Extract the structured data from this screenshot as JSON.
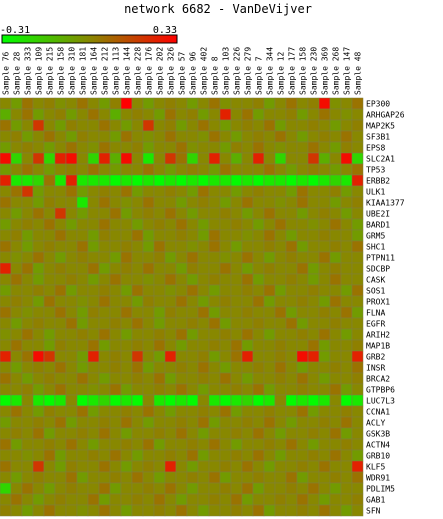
{
  "chart_data": {
    "type": "heatmap",
    "title": "network 6682 - VanDeVijver",
    "color_scale": {
      "min_label": "-0.31",
      "max_label": "0.33",
      "min": -0.31,
      "max": 0.33,
      "low_color": "#00ff00",
      "mid_color": "#888800",
      "high_color": "#ff0000"
    },
    "columns": [
      "Sample 76",
      "Sample 28",
      "Sample 333",
      "Sample 109",
      "Sample 215",
      "Sample 158",
      "Sample 310",
      "Sample 181",
      "Sample 164",
      "Sample 212",
      "Sample 113",
      "Sample 144",
      "Sample 228",
      "Sample 176",
      "Sample 202",
      "Sample 326",
      "Sample 57",
      "Sample 96",
      "Sample 402",
      "Sample 8",
      "Sample 103",
      "Sample 226",
      "Sample 279",
      "Sample 7",
      "Sample 344",
      "Sample 12",
      "Sample 177",
      "Sample 158",
      "Sample 230",
      "Sample 369",
      "Sample 268",
      "Sample 147",
      "Sample 48"
    ],
    "rows": [
      "EP300",
      "ARHGAP26",
      "MAP2K5",
      "SF3B1",
      "EPS8",
      "SLC2A1",
      "TP53",
      "ERBB2",
      "ULK1",
      "KIAA1377",
      "UBE2I",
      "BARD1",
      "GRM5",
      "SHC1",
      "PTPN11",
      "SDCBP",
      "CASK",
      "SOS1",
      "PROX1",
      "FLNA",
      "EGFR",
      "ARIH2",
      "MAP1B",
      "GRB2",
      "INSR",
      "BRCA2",
      "GTPBP6",
      "LUC7L3",
      "CCNA1",
      "ACLY",
      "GSK3B",
      "ACTN4",
      "GRB10",
      "KLF5",
      "WDR91",
      "PDLIM5",
      "GAB1",
      "SFN"
    ],
    "values": [
      [
        0.0,
        -0.05,
        0.05,
        0.0,
        0.02,
        -0.02,
        0.0,
        0.05,
        0.0,
        -0.05,
        0.02,
        0.33,
        0.0,
        -0.05,
        0.0,
        0.02,
        0.0,
        -0.05,
        0.0,
        0.05,
        -0.02,
        0.0,
        0.0,
        0.02,
        -0.05,
        0.0,
        0.05,
        0.0,
        0.02,
        0.3,
        -0.02,
        0.0,
        0.05
      ],
      [
        -0.1,
        0.0,
        0.05,
        -0.05,
        0.0,
        0.02,
        -0.05,
        0.0,
        0.05,
        0.0,
        -0.1,
        0.0,
        0.02,
        0.0,
        -0.05,
        0.05,
        0.0,
        0.02,
        -0.05,
        0.0,
        0.25,
        0.0,
        0.05,
        -0.05,
        0.0,
        0.0,
        0.02,
        -0.05,
        0.0,
        0.05,
        0.0,
        -0.02,
        0.0
      ],
      [
        0.05,
        -0.05,
        0.0,
        0.2,
        0.0,
        -0.05,
        0.02,
        0.0,
        0.0,
        0.05,
        0.0,
        -0.05,
        0.0,
        0.2,
        0.0,
        0.02,
        -0.05,
        0.0,
        0.05,
        0.0,
        -0.05,
        0.0,
        0.02,
        0.0,
        0.05,
        -0.05,
        0.0,
        0.0,
        0.02,
        0.0,
        -0.05,
        0.0,
        0.02
      ],
      [
        0.0,
        0.02,
        -0.05,
        0.0,
        0.05,
        0.0,
        -0.05,
        0.02,
        0.0,
        0.0,
        -0.05,
        0.05,
        0.0,
        -0.02,
        0.0,
        0.05,
        0.0,
        0.0,
        -0.02,
        0.05,
        0.0,
        -0.05,
        0.0,
        0.02,
        0.0,
        0.05,
        0.0,
        -0.05,
        0.0,
        0.02,
        0.0,
        0.05,
        0.0
      ],
      [
        -0.05,
        0.0,
        0.02,
        0.0,
        -0.05,
        0.0,
        0.05,
        0.0,
        -0.02,
        0.05,
        0.0,
        0.0,
        0.02,
        -0.05,
        0.0,
        0.0,
        0.05,
        -0.02,
        0.0,
        0.0,
        -0.05,
        0.02,
        0.0,
        0.05,
        0.0,
        -0.02,
        0.0,
        0.0,
        0.05,
        0.0,
        -0.05,
        0.02,
        0.0
      ],
      [
        0.3,
        -0.2,
        0.0,
        0.2,
        -0.2,
        0.25,
        0.3,
        0.0,
        -0.2,
        0.25,
        -0.1,
        0.3,
        0.0,
        -0.25,
        0.0,
        0.2,
        0.05,
        -0.2,
        0.0,
        0.25,
        0.0,
        -0.1,
        0.0,
        0.25,
        0.0,
        -0.2,
        0.0,
        0.0,
        0.2,
        -0.1,
        0.0,
        0.3,
        -0.2
      ],
      [
        -0.05,
        0.0,
        0.05,
        0.0,
        -0.05,
        0.0,
        0.02,
        0.0,
        0.05,
        0.0,
        -0.05,
        0.0,
        0.0,
        0.05,
        0.0,
        -0.05,
        0.0,
        0.02,
        0.0,
        -0.05,
        0.05,
        0.0,
        0.0,
        0.0,
        0.05,
        0.0,
        -0.05,
        0.0,
        0.02,
        0.0,
        -0.05,
        0.0,
        0.05
      ],
      [
        0.25,
        -0.25,
        -0.25,
        -0.2,
        0.05,
        -0.25,
        0.25,
        -0.25,
        -0.25,
        -0.25,
        -0.3,
        -0.25,
        -0.3,
        -0.25,
        -0.3,
        -0.25,
        -0.3,
        -0.25,
        -0.3,
        -0.25,
        -0.25,
        -0.3,
        -0.25,
        -0.3,
        -0.25,
        -0.25,
        -0.3,
        -0.25,
        -0.3,
        -0.25,
        -0.2,
        -0.25,
        0.25
      ],
      [
        0.0,
        0.05,
        0.2,
        -0.05,
        0.0,
        0.0,
        0.05,
        -0.05,
        0.0,
        0.02,
        0.0,
        0.05,
        -0.05,
        0.0,
        0.0,
        0.02,
        0.0,
        -0.05,
        0.05,
        0.0,
        0.0,
        -0.05,
        0.0,
        0.02,
        0.0,
        0.0,
        -0.05,
        0.05,
        0.0,
        0.0,
        0.02,
        -0.05,
        0.0
      ],
      [
        0.05,
        0.0,
        0.0,
        -0.05,
        0.02,
        0.0,
        0.0,
        -0.25,
        0.0,
        0.05,
        0.0,
        -0.02,
        0.0,
        0.05,
        0.0,
        0.0,
        -0.05,
        0.0,
        0.02,
        0.0,
        -0.05,
        0.0,
        0.05,
        0.0,
        0.0,
        -0.02,
        0.0,
        0.05,
        0.0,
        0.0,
        -0.05,
        0.0,
        0.02
      ],
      [
        0.0,
        -0.05,
        0.0,
        0.05,
        0.0,
        0.2,
        0.0,
        -0.05,
        0.0,
        0.0,
        0.05,
        -0.05,
        0.0,
        0.02,
        0.0,
        0.05,
        0.0,
        -0.05,
        0.0,
        0.0,
        0.02,
        0.0,
        -0.05,
        0.0,
        0.05,
        0.0,
        0.0,
        -0.05,
        0.0,
        0.02,
        0.0,
        -0.05,
        0.0
      ],
      [
        -0.05,
        0.0,
        0.02,
        0.0,
        0.05,
        0.0,
        -0.05,
        0.0,
        0.0,
        0.05,
        0.0,
        0.0,
        -0.05,
        0.0,
        0.02,
        0.0,
        0.05,
        0.0,
        -0.05,
        0.0,
        0.0,
        0.02,
        0.0,
        -0.05,
        0.0,
        0.05,
        0.0,
        0.0,
        -0.02,
        0.0,
        0.05,
        0.0,
        -0.05
      ],
      [
        0.0,
        0.02,
        -0.05,
        0.0,
        0.0,
        0.05,
        0.0,
        0.0,
        -0.05,
        0.02,
        0.0,
        0.0,
        0.05,
        -0.05,
        0.0,
        0.0,
        0.02,
        0.0,
        -0.05,
        0.05,
        0.0,
        0.0,
        -0.02,
        0.0,
        0.05,
        0.0,
        -0.05,
        0.0,
        0.0,
        0.02,
        0.0,
        0.0,
        -0.05
      ],
      [
        0.05,
        0.0,
        -0.05,
        0.0,
        0.02,
        0.0,
        0.0,
        0.05,
        -0.05,
        0.0,
        0.0,
        0.02,
        0.0,
        -0.05,
        0.05,
        0.0,
        0.0,
        -0.02,
        0.0,
        0.05,
        0.0,
        -0.05,
        0.0,
        0.0,
        0.02,
        0.0,
        0.05,
        -0.05,
        0.0,
        0.0,
        0.02,
        0.0,
        0.05
      ],
      [
        0.0,
        -0.02,
        0.0,
        0.05,
        0.0,
        -0.05,
        0.0,
        0.02,
        0.0,
        0.0,
        -0.05,
        0.05,
        0.0,
        0.0,
        0.02,
        -0.05,
        0.0,
        0.05,
        0.0,
        0.0,
        -0.02,
        0.0,
        0.05,
        0.0,
        -0.05,
        0.0,
        0.02,
        0.0,
        0.0,
        0.05,
        -0.05,
        0.0,
        0.0
      ],
      [
        0.25,
        0.0,
        0.05,
        -0.05,
        0.0,
        0.02,
        0.0,
        0.0,
        0.05,
        -0.05,
        0.0,
        0.02,
        0.0,
        0.05,
        0.0,
        0.0,
        -0.05,
        0.02,
        0.0,
        0.0,
        0.05,
        0.0,
        -0.05,
        0.0,
        0.02,
        0.0,
        0.0,
        0.05,
        -0.05,
        0.0,
        0.02,
        0.0,
        0.0
      ],
      [
        0.0,
        0.05,
        0.0,
        -0.05,
        0.0,
        0.0,
        0.02,
        0.0,
        -0.05,
        0.0,
        0.05,
        0.0,
        0.0,
        -0.02,
        0.0,
        0.05,
        0.0,
        -0.05,
        0.0,
        0.02,
        0.0,
        0.0,
        0.05,
        -0.05,
        0.0,
        0.0,
        0.02,
        0.0,
        -0.05,
        0.0,
        0.05,
        0.0,
        0.0
      ],
      [
        -0.05,
        0.0,
        0.0,
        0.02,
        0.0,
        0.05,
        -0.05,
        0.0,
        0.0,
        0.02,
        0.0,
        -0.05,
        0.05,
        0.0,
        0.0,
        -0.02,
        0.0,
        0.05,
        0.0,
        -0.05,
        0.0,
        0.0,
        0.02,
        0.0,
        0.05,
        -0.05,
        0.0,
        0.0,
        0.02,
        0.0,
        0.0,
        -0.05,
        0.05
      ],
      [
        0.0,
        0.02,
        0.0,
        -0.05,
        0.05,
        0.0,
        0.0,
        -0.02,
        0.0,
        0.05,
        0.0,
        0.0,
        -0.05,
        0.02,
        0.0,
        0.0,
        0.05,
        0.0,
        -0.05,
        0.0,
        0.02,
        0.0,
        0.0,
        0.05,
        -0.05,
        0.0,
        0.0,
        0.02,
        0.0,
        -0.05,
        0.05,
        0.0,
        0.0
      ],
      [
        0.05,
        0.0,
        -0.02,
        0.0,
        0.0,
        0.05,
        0.0,
        -0.05,
        0.02,
        0.0,
        0.0,
        0.05,
        0.0,
        0.0,
        -0.05,
        0.02,
        0.0,
        0.0,
        0.05,
        -0.05,
        0.0,
        0.0,
        0.02,
        0.0,
        0.0,
        0.05,
        -0.05,
        0.0,
        0.0,
        0.02,
        0.0,
        0.05,
        -0.05
      ],
      [
        0.0,
        -0.05,
        0.0,
        0.02,
        0.0,
        0.0,
        0.05,
        -0.05,
        0.0,
        0.0,
        0.02,
        0.0,
        0.05,
        0.0,
        -0.05,
        0.0,
        0.0,
        0.02,
        0.0,
        0.05,
        -0.05,
        0.0,
        0.0,
        0.02,
        0.0,
        0.0,
        0.05,
        -0.05,
        0.0,
        0.0,
        0.02,
        0.0,
        0.0
      ],
      [
        -0.02,
        0.0,
        0.05,
        0.0,
        -0.05,
        0.0,
        0.0,
        0.02,
        0.0,
        0.05,
        0.0,
        -0.05,
        0.0,
        0.0,
        0.02,
        0.0,
        0.05,
        -0.05,
        0.0,
        0.0,
        0.02,
        0.0,
        0.05,
        0.0,
        -0.05,
        0.0,
        0.0,
        0.02,
        0.0,
        0.05,
        0.0,
        -0.05,
        0.0
      ],
      [
        0.0,
        0.05,
        0.0,
        0.0,
        -0.05,
        0.02,
        0.0,
        0.0,
        0.05,
        -0.05,
        0.0,
        0.0,
        0.02,
        0.0,
        0.05,
        0.0,
        -0.05,
        0.0,
        0.0,
        0.02,
        0.0,
        0.05,
        -0.05,
        0.0,
        0.0,
        0.02,
        0.0,
        0.0,
        0.05,
        -0.05,
        0.0,
        0.0,
        0.02
      ],
      [
        0.25,
        0.0,
        0.05,
        0.3,
        0.2,
        0.0,
        0.0,
        -0.05,
        0.25,
        0.0,
        0.02,
        0.0,
        0.2,
        0.0,
        -0.05,
        0.25,
        0.0,
        0.0,
        0.02,
        -0.05,
        0.0,
        0.05,
        0.25,
        0.0,
        0.0,
        0.02,
        0.0,
        0.3,
        0.25,
        -0.05,
        0.0,
        0.0,
        0.25
      ],
      [
        0.0,
        -0.05,
        0.0,
        0.02,
        0.0,
        0.05,
        0.0,
        -0.05,
        0.0,
        0.0,
        0.02,
        0.0,
        0.05,
        -0.05,
        0.0,
        0.0,
        0.02,
        0.0,
        0.05,
        0.0,
        -0.05,
        0.0,
        0.0,
        0.02,
        0.0,
        0.05,
        0.0,
        -0.05,
        0.0,
        0.0,
        0.02,
        0.0,
        0.05
      ],
      [
        0.05,
        0.0,
        -0.05,
        0.0,
        0.02,
        0.0,
        0.0,
        0.05,
        0.0,
        -0.05,
        0.0,
        0.0,
        0.02,
        0.0,
        0.05,
        -0.05,
        0.0,
        0.0,
        0.02,
        0.0,
        0.05,
        0.0,
        -0.05,
        0.0,
        0.0,
        0.02,
        0.0,
        0.05,
        0.0,
        -0.05,
        0.0,
        0.0,
        0.02
      ],
      [
        0.0,
        0.0,
        0.02,
        -0.05,
        0.0,
        0.05,
        0.0,
        0.0,
        -0.02,
        0.0,
        0.05,
        -0.05,
        0.0,
        0.0,
        0.02,
        0.0,
        0.05,
        0.0,
        -0.05,
        0.0,
        0.0,
        0.02,
        0.0,
        0.05,
        -0.05,
        0.0,
        0.0,
        0.02,
        0.0,
        0.0,
        0.05,
        -0.05,
        0.0
      ],
      [
        -0.3,
        -0.25,
        0.0,
        -0.25,
        -0.3,
        -0.25,
        0.0,
        -0.3,
        -0.25,
        -0.2,
        -0.3,
        -0.25,
        -0.3,
        0.0,
        -0.25,
        -0.3,
        -0.25,
        -0.3,
        0.0,
        -0.25,
        -0.3,
        -0.25,
        -0.2,
        -0.3,
        -0.25,
        0.0,
        -0.3,
        -0.25,
        -0.3,
        -0.25,
        0.0,
        -0.3,
        -0.25
      ],
      [
        0.0,
        0.05,
        0.0,
        -0.05,
        0.02,
        0.0,
        0.0,
        0.05,
        -0.05,
        0.0,
        0.0,
        0.02,
        0.0,
        0.05,
        0.0,
        -0.05,
        0.0,
        0.0,
        0.02,
        0.0,
        0.05,
        -0.05,
        0.0,
        0.0,
        0.02,
        0.0,
        0.0,
        0.05,
        -0.05,
        0.0,
        0.0,
        0.02,
        0.0
      ],
      [
        -0.05,
        0.0,
        0.0,
        0.02,
        0.0,
        0.05,
        -0.05,
        0.0,
        0.0,
        0.02,
        0.0,
        0.05,
        0.0,
        -0.05,
        0.0,
        0.0,
        0.02,
        0.0,
        0.05,
        -0.05,
        0.0,
        0.0,
        0.02,
        0.0,
        0.05,
        0.0,
        -0.05,
        0.0,
        0.0,
        0.02,
        0.0,
        0.05,
        0.0
      ],
      [
        0.0,
        0.02,
        0.0,
        0.05,
        -0.05,
        0.0,
        0.0,
        0.02,
        0.0,
        0.05,
        0.0,
        -0.05,
        0.0,
        0.0,
        0.02,
        0.0,
        0.05,
        0.0,
        -0.05,
        0.0,
        0.0,
        0.02,
        0.0,
        0.05,
        0.0,
        -0.05,
        0.0,
        0.0,
        0.02,
        0.0,
        0.05,
        -0.05,
        0.0
      ],
      [
        0.05,
        -0.05,
        0.0,
        0.0,
        0.02,
        0.0,
        0.05,
        0.0,
        -0.05,
        0.0,
        0.0,
        0.02,
        0.0,
        0.05,
        -0.05,
        0.0,
        0.0,
        0.02,
        0.0,
        0.05,
        0.0,
        -0.05,
        0.0,
        0.0,
        0.02,
        0.0,
        0.05,
        0.0,
        -0.05,
        0.0,
        0.0,
        0.02,
        0.0
      ],
      [
        0.0,
        0.0,
        -0.02,
        0.0,
        0.05,
        -0.05,
        0.0,
        0.0,
        0.02,
        0.0,
        0.05,
        0.0,
        -0.05,
        0.0,
        0.0,
        0.02,
        0.0,
        0.05,
        -0.05,
        0.0,
        0.0,
        0.02,
        0.0,
        0.05,
        0.0,
        -0.05,
        0.0,
        0.0,
        0.02,
        0.0,
        0.05,
        0.0,
        -0.05
      ],
      [
        0.05,
        0.0,
        0.0,
        0.2,
        0.0,
        -0.05,
        0.02,
        0.0,
        0.0,
        0.05,
        0.0,
        -0.05,
        0.0,
        0.02,
        0.0,
        0.25,
        0.0,
        -0.05,
        0.0,
        0.0,
        0.02,
        0.0,
        0.05,
        0.0,
        -0.05,
        0.0,
        0.0,
        0.02,
        0.0,
        0.05,
        0.0,
        0.0,
        0.25
      ],
      [
        0.0,
        -0.05,
        0.0,
        0.02,
        0.0,
        0.0,
        0.05,
        -0.05,
        0.0,
        0.0,
        0.02,
        0.0,
        0.05,
        0.0,
        -0.05,
        0.0,
        0.0,
        0.02,
        0.0,
        0.05,
        -0.05,
        0.0,
        0.0,
        0.02,
        0.0,
        0.0,
        0.05,
        -0.05,
        0.0,
        0.0,
        0.02,
        0.0,
        0.05
      ],
      [
        -0.2,
        0.0,
        0.05,
        0.0,
        -0.05,
        0.0,
        0.02,
        0.0,
        0.0,
        0.05,
        -0.05,
        0.0,
        0.0,
        0.02,
        0.0,
        0.05,
        0.0,
        -0.05,
        0.0,
        0.0,
        0.02,
        0.0,
        0.05,
        -0.05,
        0.0,
        0.0,
        0.02,
        0.0,
        0.05,
        0.0,
        -0.05,
        0.0,
        0.0
      ],
      [
        0.0,
        0.05,
        0.0,
        -0.05,
        0.0,
        0.02,
        0.0,
        0.0,
        0.05,
        -0.05,
        0.0,
        0.0,
        0.02,
        0.0,
        0.05,
        0.0,
        -0.05,
        0.0,
        0.0,
        0.02,
        0.0,
        0.05,
        -0.05,
        0.0,
        0.0,
        0.02,
        0.0,
        0.05,
        0.0,
        -0.05,
        0.0,
        0.0,
        0.02
      ],
      [
        0.02,
        0.0,
        -0.05,
        0.0,
        0.05,
        0.0,
        0.0,
        -0.02,
        0.0,
        0.05,
        0.0,
        -0.05,
        0.0,
        0.0,
        0.02,
        0.0,
        0.05,
        0.0,
        -0.05,
        0.0,
        0.0,
        0.02,
        0.0,
        0.05,
        -0.05,
        0.0,
        0.0,
        0.02,
        0.0,
        0.05,
        0.0,
        -0.05,
        0.0
      ]
    ]
  }
}
